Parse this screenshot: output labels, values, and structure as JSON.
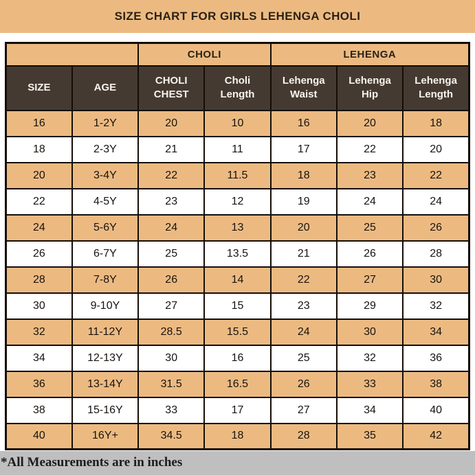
{
  "title": "SIZE CHART FOR GIRLS LEHENGA CHOLI",
  "footer_note": "*All Measurements are in inches",
  "chart_data": {
    "type": "table",
    "title": "SIZE CHART FOR GIRLS LEHENGA CHOLI",
    "column_groups": [
      {
        "label": "",
        "span": 2
      },
      {
        "label": "CHOLI",
        "span": 2
      },
      {
        "label": "LEHENGA",
        "span": 3
      }
    ],
    "columns": [
      "SIZE",
      "AGE",
      "CHOLI CHEST",
      "Choli Length",
      "Lehenga Waist",
      "Lehenga Hip",
      "Lehenga Length"
    ],
    "rows": [
      [
        "16",
        "1-2Y",
        "20",
        "10",
        "16",
        "20",
        "18"
      ],
      [
        "18",
        "2-3Y",
        "21",
        "11",
        "17",
        "22",
        "20"
      ],
      [
        "20",
        "3-4Y",
        "22",
        "11.5",
        "18",
        "23",
        "22"
      ],
      [
        "22",
        "4-5Y",
        "23",
        "12",
        "19",
        "24",
        "24"
      ],
      [
        "24",
        "5-6Y",
        "24",
        "13",
        "20",
        "25",
        "26"
      ],
      [
        "26",
        "6-7Y",
        "25",
        "13.5",
        "21",
        "26",
        "28"
      ],
      [
        "28",
        "7-8Y",
        "26",
        "14",
        "22",
        "27",
        "30"
      ],
      [
        "30",
        "9-10Y",
        "27",
        "15",
        "23",
        "29",
        "32"
      ],
      [
        "32",
        "11-12Y",
        "28.5",
        "15.5",
        "24",
        "30",
        "34"
      ],
      [
        "34",
        "12-13Y",
        "30",
        "16",
        "25",
        "32",
        "36"
      ],
      [
        "36",
        "13-14Y",
        "31.5",
        "16.5",
        "26",
        "33",
        "38"
      ],
      [
        "38",
        "15-16Y",
        "33",
        "17",
        "27",
        "34",
        "40"
      ],
      [
        "40",
        "16Y+",
        "34.5",
        "18",
        "28",
        "35",
        "42"
      ]
    ],
    "note": "*All Measurements are in inches",
    "row_shading": "alternating, first row shaded"
  },
  "colors": {
    "tan": "#ecba81",
    "header_brown": "#453a31",
    "header_text": "#f7f3ef",
    "row_white": "#ffffff",
    "footer_gray": "#bfbfbf",
    "border_black": "#140d08",
    "title_text": "#2b2117",
    "data_text": "#171310"
  }
}
